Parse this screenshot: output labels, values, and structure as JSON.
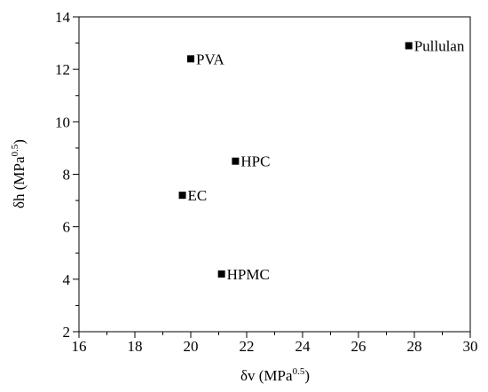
{
  "chart_data": {
    "type": "scatter",
    "x_label": {
      "main": "δv (MPa",
      "superscript": "0.5",
      "end": ")"
    },
    "y_label": {
      "main": "δh (MPa",
      "superscript": "0.5",
      "end": ")"
    },
    "x": [
      20,
      27.8,
      21.6,
      19.7,
      21.1
    ],
    "values": [
      12.4,
      12.9,
      8.5,
      7.2,
      4.2
    ],
    "point_labels": [
      "PVA",
      "Pullulan",
      "HPC",
      "EC",
      "HPMC"
    ],
    "color": "#000000",
    "xlim": [
      16,
      30
    ],
    "xticks": [
      16,
      18,
      20,
      22,
      24,
      26,
      28,
      30
    ],
    "ylim": [
      2,
      14
    ],
    "yticks": [
      2,
      4,
      6,
      8,
      10,
      12,
      14
    ],
    "minor_ticks": true
  }
}
